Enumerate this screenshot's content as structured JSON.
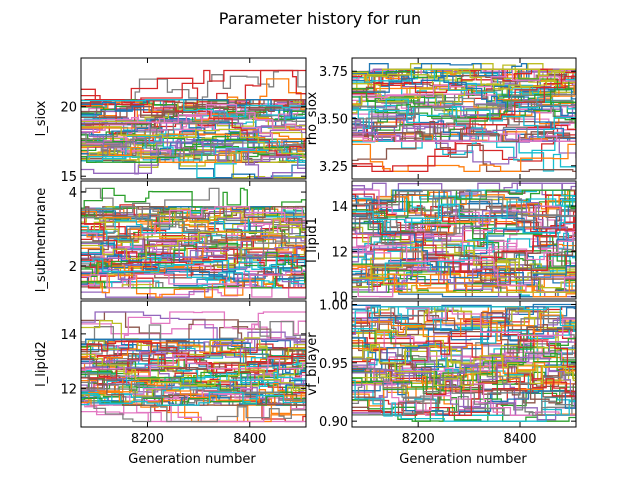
{
  "chart_data": {
    "type": "line",
    "title": "Parameter history for run",
    "xlabel": "Generation number",
    "xlim": [
      8070,
      8510
    ],
    "grid": false,
    "legend": "none",
    "colors": [
      "#1f77b4",
      "#ff7f0e",
      "#2ca02c",
      "#d62728",
      "#9467bd",
      "#8c564b",
      "#e377c2",
      "#7f7f7f",
      "#bcbd22",
      "#17becf"
    ],
    "panels": [
      {
        "ylabel": "l_siox",
        "ylim": [
          14.8,
          23.5
        ],
        "yticks": [
          15,
          20
        ],
        "band": [
          16.0,
          20.5
        ],
        "spread": [
          14.9,
          22.6
        ],
        "xticks": []
      },
      {
        "ylabel": "rho_siox",
        "ylim": [
          3.18,
          3.82
        ],
        "yticks": [
          3.25,
          3.5,
          3.75
        ],
        "band": [
          3.38,
          3.76
        ],
        "spread": [
          3.22,
          3.79
        ],
        "xticks": []
      },
      {
        "ylabel": "l_submembrane",
        "ylim": [
          1.1,
          4.3
        ],
        "yticks": [
          2,
          4
        ],
        "band": [
          1.4,
          3.6
        ],
        "spread": [
          1.15,
          4.1
        ],
        "xticks": []
      },
      {
        "ylabel": "l_lipid1",
        "ylim": [
          9.9,
          15.1
        ],
        "yticks": [
          10,
          12,
          14
        ],
        "band": [
          10.2,
          14.7
        ],
        "spread": [
          10.0,
          15.0
        ],
        "xticks": []
      },
      {
        "ylabel": "l_lipid2",
        "ylim": [
          10.6,
          15.2
        ],
        "yticks": [
          12,
          14
        ],
        "band": [
          11.4,
          13.8
        ],
        "spread": [
          10.8,
          14.8
        ],
        "xticks": [
          8200,
          8400
        ]
      },
      {
        "ylabel": "vf_bilayer",
        "ylim": [
          0.895,
          1.003
        ],
        "yticks": [
          0.9,
          0.95,
          1.0
        ],
        "band": [
          0.905,
          0.998
        ],
        "spread": [
          0.9,
          1.0
        ],
        "xticks": [
          8200,
          8400
        ]
      }
    ]
  }
}
